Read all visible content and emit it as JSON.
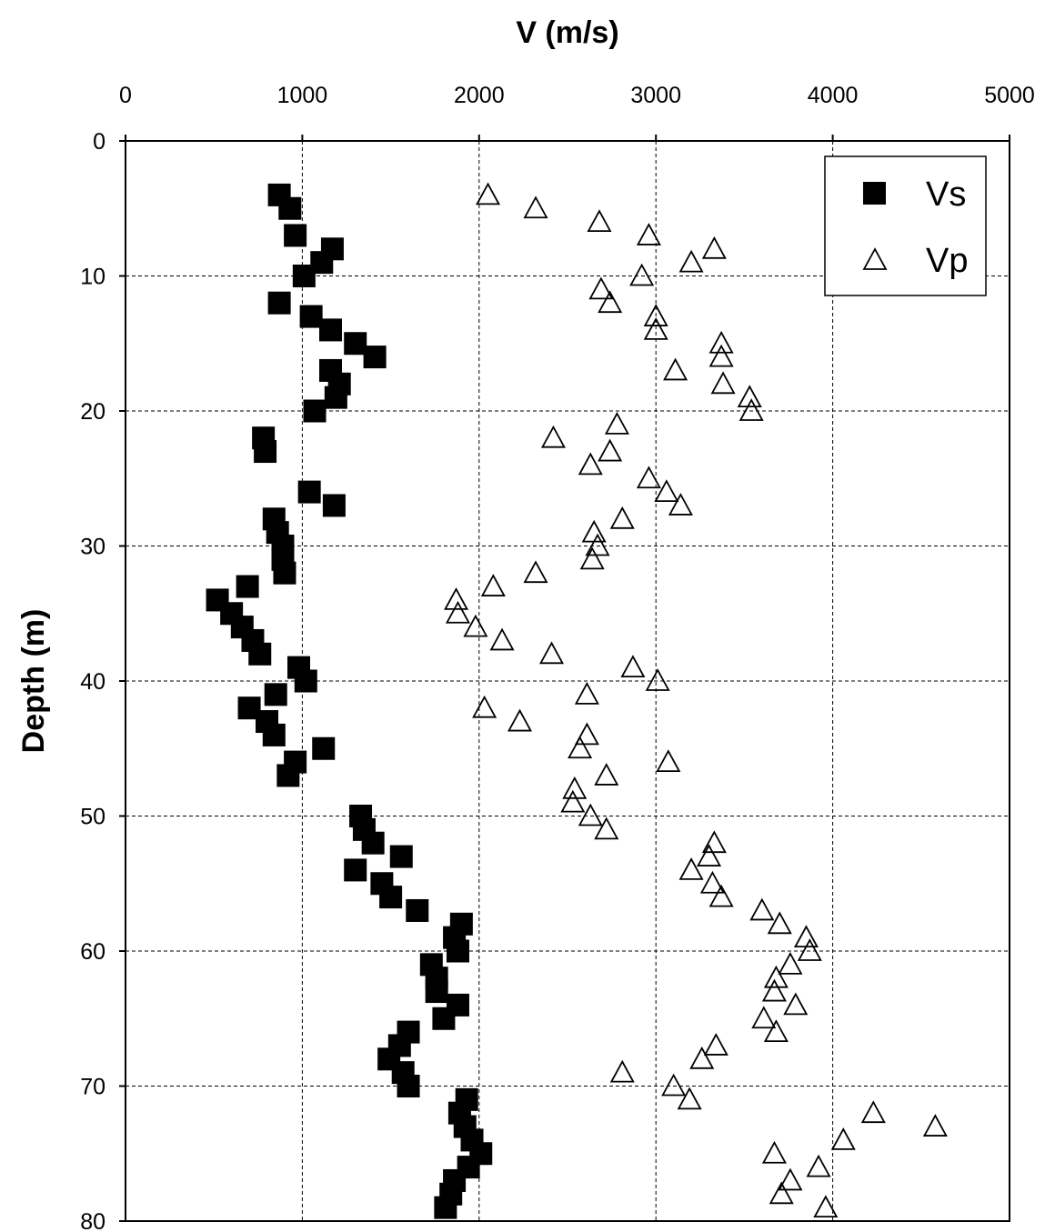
{
  "chart_data": {
    "type": "scatter",
    "title": "",
    "xlabel": "V (m/s)",
    "ylabel": "Depth (m)",
    "xlim": [
      0,
      5000
    ],
    "ylim": [
      0,
      80
    ],
    "y_inverted": true,
    "x_axis_position": "top",
    "x_ticks": [
      "0",
      "1000",
      "2000",
      "3000",
      "4000",
      "5000"
    ],
    "y_ticks": [
      "0",
      "10",
      "20",
      "30",
      "40",
      "50",
      "60",
      "70",
      "80"
    ],
    "grid": "dashed",
    "legend_position": "top-right",
    "series": [
      {
        "name": "Vs",
        "marker": "filled-square",
        "color": "#000000",
        "points": [
          [
            870,
            4
          ],
          [
            930,
            5
          ],
          [
            960,
            7
          ],
          [
            1170,
            8
          ],
          [
            1110,
            9
          ],
          [
            1010,
            10
          ],
          [
            870,
            12
          ],
          [
            1050,
            13
          ],
          [
            1160,
            14
          ],
          [
            1300,
            15
          ],
          [
            1410,
            16
          ],
          [
            1160,
            17
          ],
          [
            1210,
            18
          ],
          [
            1190,
            19
          ],
          [
            1070,
            20
          ],
          [
            780,
            22
          ],
          [
            790,
            23
          ],
          [
            1040,
            26
          ],
          [
            1180,
            27
          ],
          [
            840,
            28
          ],
          [
            860,
            29
          ],
          [
            890,
            30
          ],
          [
            890,
            31
          ],
          [
            900,
            32
          ],
          [
            690,
            33
          ],
          [
            520,
            34
          ],
          [
            600,
            35
          ],
          [
            660,
            36
          ],
          [
            720,
            37
          ],
          [
            760,
            38
          ],
          [
            980,
            39
          ],
          [
            1020,
            40
          ],
          [
            850,
            41
          ],
          [
            700,
            42
          ],
          [
            800,
            43
          ],
          [
            840,
            44
          ],
          [
            1120,
            45
          ],
          [
            960,
            46
          ],
          [
            920,
            47
          ],
          [
            1330,
            50
          ],
          [
            1350,
            51
          ],
          [
            1400,
            52
          ],
          [
            1560,
            53
          ],
          [
            1300,
            54
          ],
          [
            1450,
            55
          ],
          [
            1500,
            56
          ],
          [
            1650,
            57
          ],
          [
            1900,
            58
          ],
          [
            1860,
            59
          ],
          [
            1880,
            60
          ],
          [
            1730,
            61
          ],
          [
            1760,
            62
          ],
          [
            1760,
            63
          ],
          [
            1880,
            64
          ],
          [
            1800,
            65
          ],
          [
            1600,
            66
          ],
          [
            1550,
            67
          ],
          [
            1490,
            68
          ],
          [
            1570,
            69
          ],
          [
            1600,
            70
          ],
          [
            1930,
            71
          ],
          [
            1890,
            72
          ],
          [
            1920,
            73
          ],
          [
            1960,
            74
          ],
          [
            2010,
            75
          ],
          [
            1940,
            76
          ],
          [
            1860,
            77
          ],
          [
            1840,
            78
          ],
          [
            1810,
            79
          ]
        ]
      },
      {
        "name": "Vp",
        "marker": "open-triangle",
        "color": "#000000",
        "points": [
          [
            2050,
            4
          ],
          [
            2320,
            5
          ],
          [
            2680,
            6
          ],
          [
            2960,
            7
          ],
          [
            3330,
            8
          ],
          [
            3200,
            9
          ],
          [
            2920,
            10
          ],
          [
            2690,
            11
          ],
          [
            2740,
            12
          ],
          [
            3000,
            13
          ],
          [
            3000,
            14
          ],
          [
            3370,
            15
          ],
          [
            3370,
            16
          ],
          [
            3110,
            17
          ],
          [
            3380,
            18
          ],
          [
            3530,
            19
          ],
          [
            3540,
            20
          ],
          [
            2780,
            21
          ],
          [
            2420,
            22
          ],
          [
            2740,
            23
          ],
          [
            2630,
            24
          ],
          [
            2960,
            25
          ],
          [
            3060,
            26
          ],
          [
            3140,
            27
          ],
          [
            2810,
            28
          ],
          [
            2650,
            29
          ],
          [
            2670,
            30
          ],
          [
            2640,
            31
          ],
          [
            2320,
            32
          ],
          [
            2080,
            33
          ],
          [
            1870,
            34
          ],
          [
            1880,
            35
          ],
          [
            1980,
            36
          ],
          [
            2130,
            37
          ],
          [
            2410,
            38
          ],
          [
            2870,
            39
          ],
          [
            3010,
            40
          ],
          [
            2610,
            41
          ],
          [
            2030,
            42
          ],
          [
            2230,
            43
          ],
          [
            2610,
            44
          ],
          [
            2570,
            45
          ],
          [
            3070,
            46
          ],
          [
            2720,
            47
          ],
          [
            2540,
            48
          ],
          [
            2530,
            49
          ],
          [
            2630,
            50
          ],
          [
            2720,
            51
          ],
          [
            3330,
            52
          ],
          [
            3300,
            53
          ],
          [
            3200,
            54
          ],
          [
            3320,
            55
          ],
          [
            3370,
            56
          ],
          [
            3600,
            57
          ],
          [
            3700,
            58
          ],
          [
            3850,
            59
          ],
          [
            3870,
            60
          ],
          [
            3760,
            61
          ],
          [
            3680,
            62
          ],
          [
            3670,
            63
          ],
          [
            3790,
            64
          ],
          [
            3610,
            65
          ],
          [
            3680,
            66
          ],
          [
            3340,
            67
          ],
          [
            3260,
            68
          ],
          [
            2810,
            69
          ],
          [
            3100,
            70
          ],
          [
            3190,
            71
          ],
          [
            4230,
            72
          ],
          [
            4580,
            73
          ],
          [
            4060,
            74
          ],
          [
            3670,
            75
          ],
          [
            3920,
            76
          ],
          [
            3760,
            77
          ],
          [
            3710,
            78
          ],
          [
            3960,
            79
          ]
        ]
      }
    ]
  }
}
